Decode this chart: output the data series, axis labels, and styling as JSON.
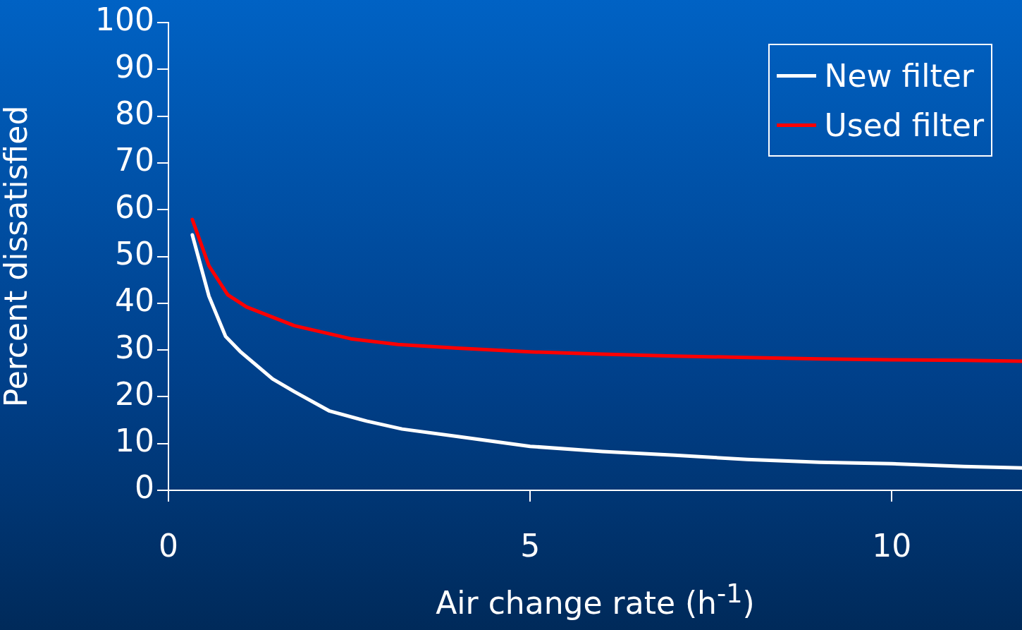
{
  "chart_data": {
    "type": "line",
    "xlabel": "Air change rate (h$^{-1}$)",
    "ylabel": "Percent dissatisfied",
    "xlim": [
      0,
      11.8
    ],
    "xticks": [
      0,
      5,
      10
    ],
    "ylim": [
      0,
      100
    ],
    "yticks": [
      0,
      10,
      20,
      30,
      40,
      50,
      60,
      70,
      80,
      90,
      100
    ],
    "grid": false,
    "legend": "top right",
    "marker": "none",
    "line_style": "solid",
    "series": [
      {
        "name": "New filter",
        "color": "#ffffff",
        "x": [
          0.33,
          0.56,
          0.79,
          0.99,
          1.44,
          1.74,
          2.22,
          2.74,
          3.23,
          4,
          5,
          6,
          7,
          8,
          9,
          10,
          11,
          11.8
        ],
        "values": [
          54.6,
          41.5,
          32.9,
          29.7,
          23.8,
          21.1,
          17.0,
          14.8,
          13.1,
          11.5,
          9.4,
          8.3,
          7.5,
          6.6,
          6.0,
          5.7,
          5.1,
          4.8
        ]
      },
      {
        "name": "Used filter",
        "color": "#ff0000",
        "x": [
          0.33,
          0.56,
          0.82,
          1.08,
          1.74,
          2.52,
          3.17,
          4,
          5,
          6,
          7,
          8,
          9,
          10,
          11,
          11.8
        ],
        "values": [
          57.9,
          48.0,
          41.8,
          39.2,
          35.2,
          32.4,
          31.2,
          30.4,
          29.6,
          29.1,
          28.7,
          28.4,
          28.1,
          27.9,
          27.8,
          27.6
        ]
      }
    ]
  }
}
